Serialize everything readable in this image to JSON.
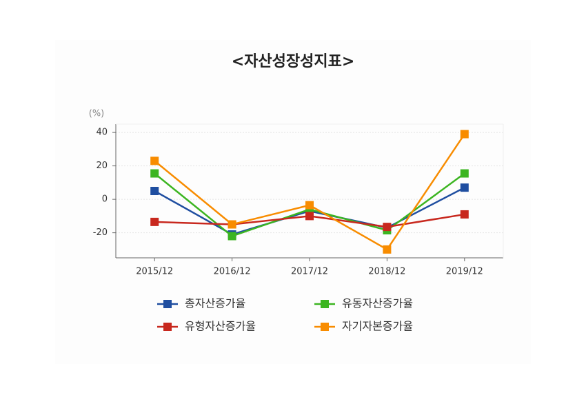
{
  "chart_data": {
    "type": "line",
    "title": "<자산성장성지표>",
    "y_unit": "(%)",
    "categories": [
      "2015/12",
      "2016/12",
      "2017/12",
      "2018/12",
      "2019/12"
    ],
    "series": [
      {
        "name": "총자산증가율",
        "color": "#1f4ea0",
        "values": [
          5,
          -21,
          -7,
          -17,
          7
        ]
      },
      {
        "name": "유동자산증가율",
        "color": "#3cb521",
        "values": [
          15.5,
          -22,
          -6,
          -18.5,
          15.5
        ]
      },
      {
        "name": "유형자산증가율",
        "color": "#c8281e",
        "values": [
          -13.5,
          -15,
          -10,
          -16.5,
          -9
        ]
      },
      {
        "name": "자기자본증가율",
        "color": "#f88c00",
        "values": [
          23,
          -15,
          -3.5,
          -30,
          39
        ]
      }
    ],
    "ylim": [
      -35,
      45
    ],
    "yticks": [
      -20,
      0,
      20,
      40
    ],
    "grid": true
  }
}
